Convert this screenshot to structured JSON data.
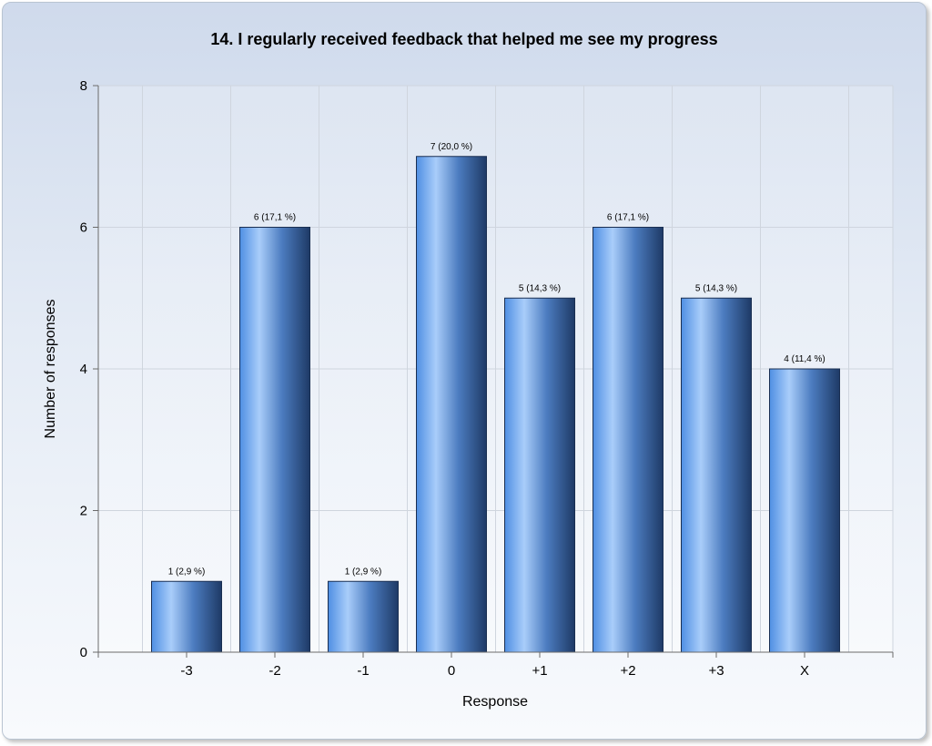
{
  "chart_data": {
    "type": "bar",
    "title": "14. I regularly received feedback that helped me see my progress",
    "xlabel": "Response",
    "ylabel": "Number of responses",
    "categories": [
      "-3",
      "-2",
      "-1",
      "0",
      "+1",
      "+2",
      "+3",
      "X"
    ],
    "values": [
      1,
      6,
      1,
      7,
      5,
      6,
      5,
      4
    ],
    "data_labels": [
      "1 (2,9 %)",
      "6 (17,1 %)",
      "1 (2,9 %)",
      "7 (20,0 %)",
      "5 (14,3 %)",
      "6 (17,1 %)",
      "5 (14,3 %)",
      "4 (11,4 %)"
    ],
    "ylim": [
      0,
      8
    ],
    "yticks": [
      "0",
      "2",
      "4",
      "6",
      "8"
    ],
    "grid": true,
    "legend": "none",
    "colors": {
      "bar_light": "#a9cdfa",
      "bar_mid": "#4f8fe3",
      "bar_dark": "#1e3a66",
      "grid": "#cfd5de",
      "axis": "#6b6b6b",
      "plot_bg": "#ffffff"
    }
  }
}
